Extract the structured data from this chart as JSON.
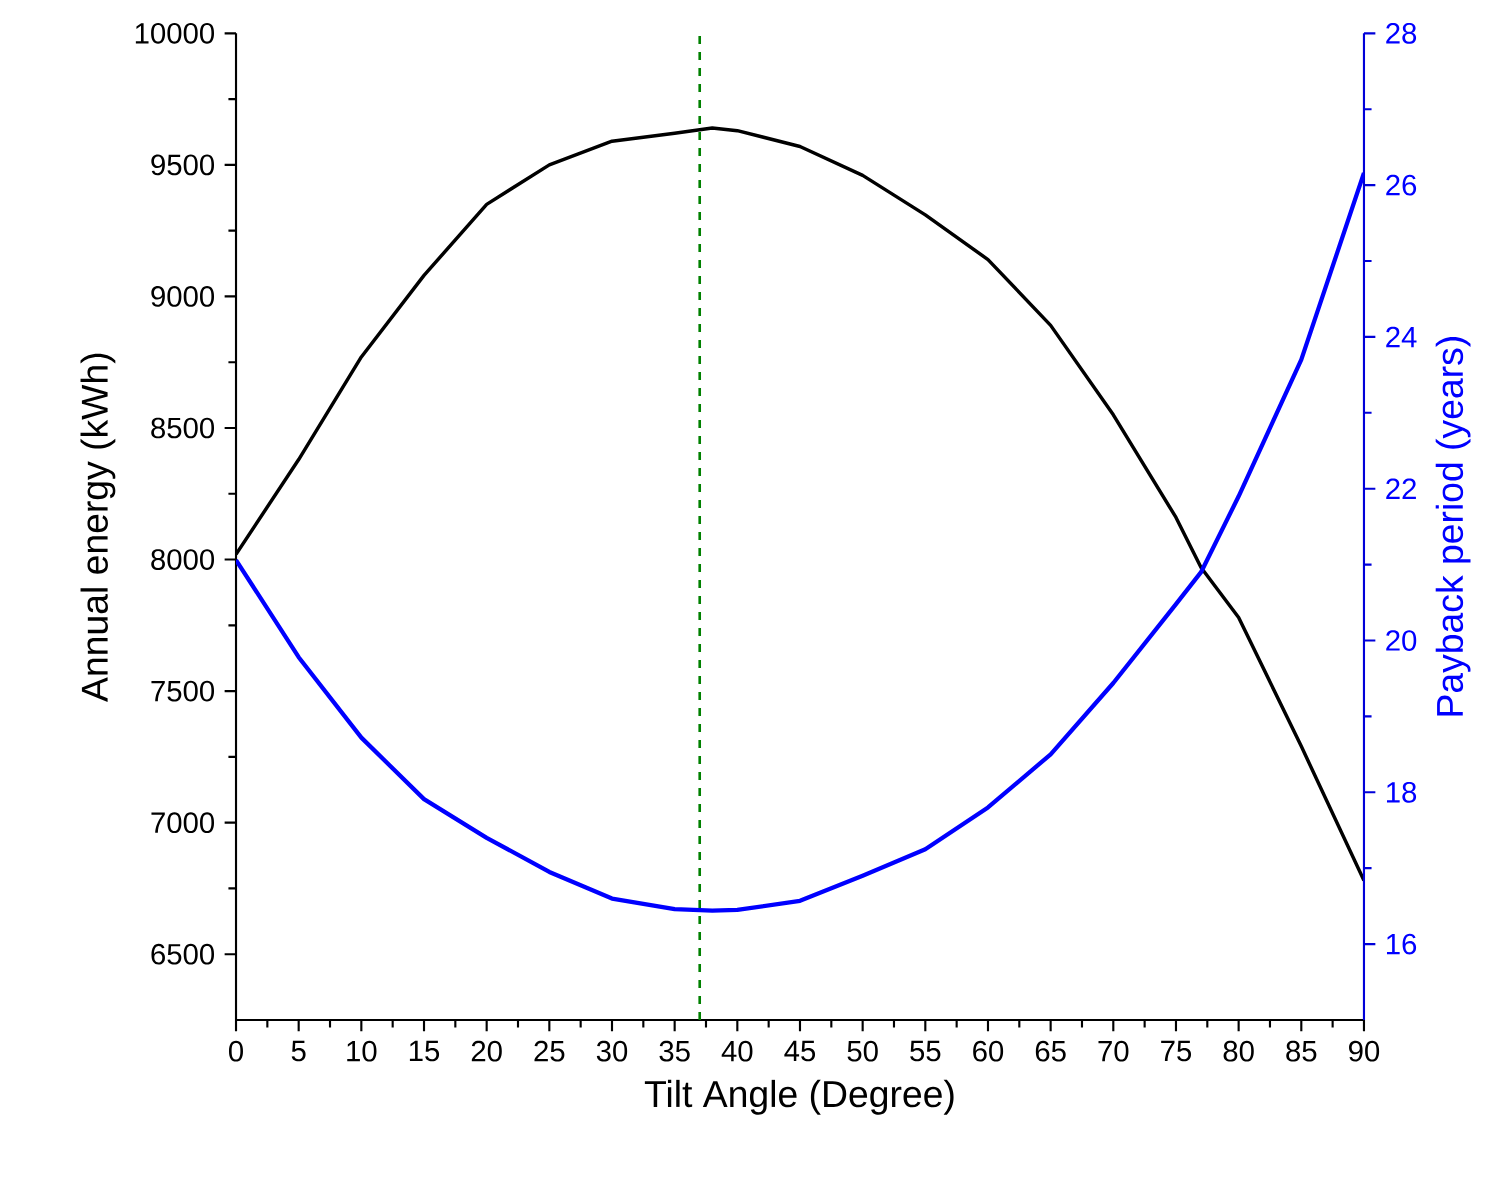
{
  "chart_data": {
    "type": "line",
    "xlabel": "Tilt Angle (Degree)",
    "ylabel": "Annual energy (kWh)",
    "y2label": "Payback period (years)",
    "x": [
      0,
      5,
      10,
      15,
      20,
      25,
      30,
      35,
      38,
      40,
      45,
      50,
      55,
      60,
      65,
      70,
      75,
      77,
      80,
      85,
      90
    ],
    "series": [
      {
        "color": "#000000",
        "values": [
          8020,
          8380,
          8770,
          9080,
          9350,
          9500,
          9590,
          9620,
          9640,
          9630,
          9570,
          9460,
          9310,
          9140,
          8890,
          8550,
          8160,
          7970,
          7780,
          7290,
          6780
        ]
      },
      {
        "color": "#0000ff",
        "axis": "y2",
        "values": [
          21.06,
          19.78,
          18.72,
          17.91,
          17.4,
          16.95,
          16.6,
          16.46,
          16.44,
          16.45,
          16.57,
          16.9,
          17.25,
          17.8,
          18.5,
          19.44,
          20.48,
          20.9,
          21.9,
          23.7,
          26.16
        ]
      }
    ],
    "xlim": [
      0,
      90
    ],
    "xticks": [
      0,
      5,
      10,
      15,
      20,
      25,
      30,
      35,
      40,
      45,
      50,
      55,
      60,
      65,
      70,
      75,
      80,
      85,
      90
    ],
    "ylim": [
      6250,
      10000
    ],
    "yticks": [
      6500,
      7000,
      7500,
      8000,
      8500,
      9000,
      9500,
      10000
    ],
    "y2lim": [
      15,
      28
    ],
    "y2ticks": [
      16,
      18,
      20,
      22,
      24,
      26,
      28
    ],
    "ref_lines": [
      {
        "axis": "x",
        "value": 37,
        "color": "#008000",
        "line_style": "dashed"
      }
    ],
    "grid": false
  }
}
